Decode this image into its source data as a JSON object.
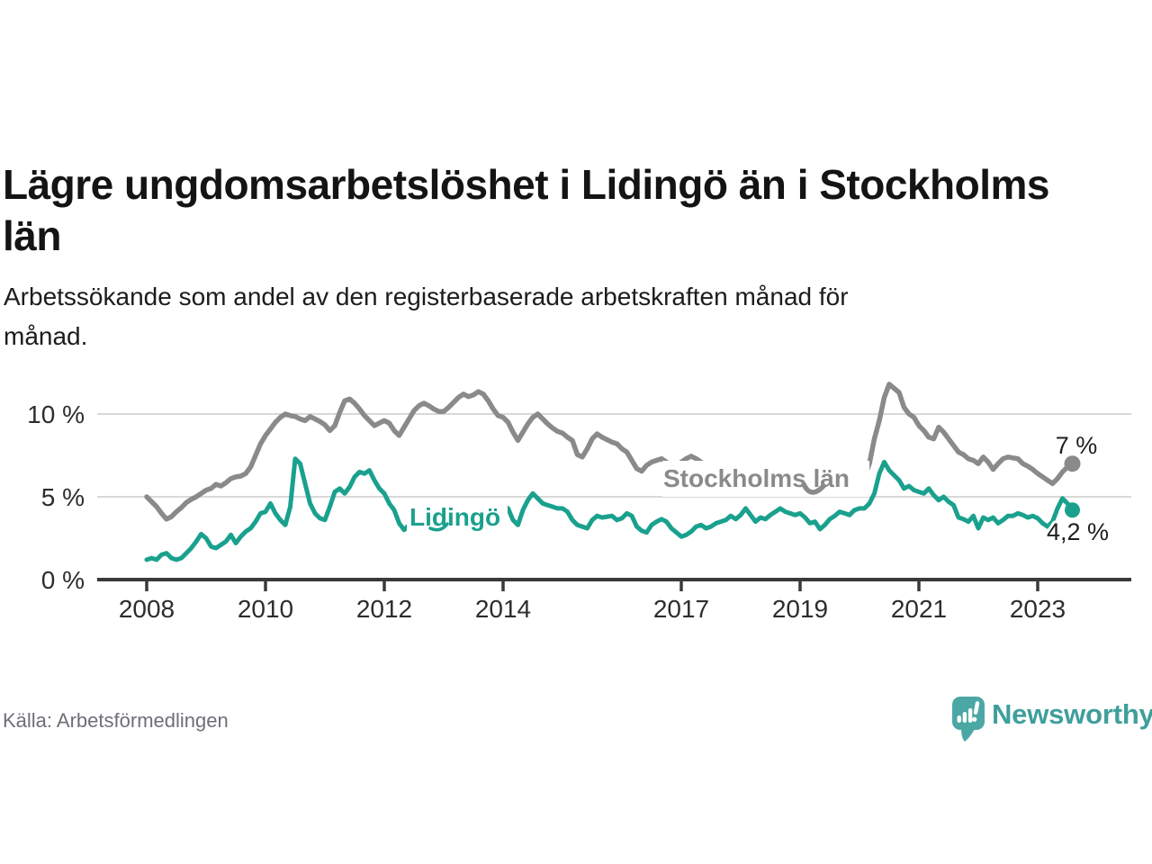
{
  "header": {
    "title": "Lägre ungdomsarbetslöshet i Lidingö än i Stockholms län",
    "title_lines": [
      "Lägre ungdomsarbetslöshet i Lidingö än i Stockholms",
      "län"
    ],
    "subtitle": "Arbetssökande som andel av den registerbaserade arbetskraften månad för månad.",
    "subtitle_lines": [
      "Arbetssökande som andel av den registerbaserade arbetskraften månad för",
      "månad."
    ]
  },
  "footer": {
    "source": "Källa: Arbetsförmedlingen",
    "brand": "Newsworthy"
  },
  "colors": {
    "accent_teal": "#1aa18e",
    "line_gray": "#8a8a8a",
    "logo_teal": "#4ba7a4",
    "wordmark_teal": "#3f9f9c",
    "axis_dark": "#3a3a3a",
    "grid_light": "#d8d8d8",
    "text_muted": "#6f6f78"
  },
  "chart_data": {
    "type": "line",
    "title": "Lägre ungdomsarbetslöshet i Lidingö än i Stockholms län",
    "xlabel": "",
    "ylabel": "Arbetssökande som andel av den registerbaserade arbetskraften",
    "frequency": "monthly",
    "x_start": "2008-01",
    "x_end": "2023-08",
    "ylim": [
      0,
      12.5
    ],
    "grid": "horizontal",
    "legend_position": "inline-labels",
    "yticks": [
      {
        "value": 0,
        "label": "0 %"
      },
      {
        "value": 5,
        "label": "5 %"
      },
      {
        "value": 10,
        "label": "10 %"
      }
    ],
    "xticks": [
      {
        "year": 2008,
        "label": "2008"
      },
      {
        "year": 2010,
        "label": "2010"
      },
      {
        "year": 2012,
        "label": "2012"
      },
      {
        "year": 2014,
        "label": "2014"
      },
      {
        "year": 2017,
        "label": "2017"
      },
      {
        "year": 2019,
        "label": "2019"
      },
      {
        "year": 2021,
        "label": "2021"
      },
      {
        "year": 2023,
        "label": "2023"
      }
    ],
    "series": [
      {
        "id": "stockholm",
        "name": "Stockholms län",
        "color": "#8a8a8a",
        "width": 5.5,
        "end_value": 7.0,
        "end_label": "7 %",
        "values": [
          5.0,
          4.7,
          4.4,
          4.0,
          3.65,
          3.8,
          4.1,
          4.35,
          4.65,
          4.85,
          5.0,
          5.2,
          5.4,
          5.5,
          5.75,
          5.65,
          5.85,
          6.1,
          6.2,
          6.25,
          6.4,
          6.8,
          7.5,
          8.2,
          8.7,
          9.1,
          9.5,
          9.8,
          10.0,
          9.9,
          9.85,
          9.7,
          9.6,
          9.85,
          9.7,
          9.55,
          9.35,
          9.0,
          9.3,
          10.1,
          10.8,
          10.9,
          10.65,
          10.3,
          9.9,
          9.6,
          9.3,
          9.45,
          9.6,
          9.45,
          9.0,
          8.7,
          9.2,
          9.7,
          10.2,
          10.5,
          10.65,
          10.5,
          10.3,
          10.15,
          10.15,
          10.4,
          10.7,
          11.0,
          11.2,
          11.05,
          11.15,
          11.35,
          11.2,
          10.8,
          10.3,
          9.9,
          9.8,
          9.5,
          8.9,
          8.4,
          8.9,
          9.4,
          9.8,
          10.0,
          9.7,
          9.4,
          9.15,
          8.95,
          8.85,
          8.6,
          8.4,
          7.55,
          7.4,
          7.9,
          8.5,
          8.8,
          8.6,
          8.45,
          8.3,
          8.2,
          7.9,
          7.7,
          7.2,
          6.7,
          6.55,
          6.9,
          7.1,
          7.2,
          7.3,
          7.1,
          6.7,
          6.5,
          7.1,
          7.3,
          7.45,
          7.3,
          7.1,
          6.9,
          6.7,
          6.5,
          6.35,
          6.2,
          6.1,
          6.0,
          5.9,
          5.8,
          5.75,
          5.65,
          5.6,
          5.5,
          5.45,
          5.4,
          5.35,
          5.3,
          5.3,
          5.25,
          5.2,
          5.15,
          5.2,
          5.25,
          5.2,
          5.3,
          5.3,
          5.35,
          5.4,
          5.35,
          5.4,
          5.5,
          5.6,
          6.2,
          7.0,
          8.5,
          9.6,
          11.0,
          11.8,
          11.55,
          11.3,
          10.4,
          10.0,
          9.8,
          9.3,
          9.0,
          8.6,
          8.5,
          9.2,
          8.9,
          8.5,
          8.1,
          7.7,
          7.55,
          7.3,
          7.2,
          7.0,
          7.4,
          7.1,
          6.65,
          7.0,
          7.3,
          7.4,
          7.35,
          7.3,
          7.0,
          6.85,
          6.65,
          6.4,
          6.2,
          6.0,
          5.8,
          6.1,
          6.5,
          6.8,
          7.0
        ]
      },
      {
        "id": "lidingo",
        "name": "Lidingö",
        "color": "#1aa18e",
        "width": 5,
        "end_value": 4.2,
        "end_label": "4,2 %",
        "values": [
          1.2,
          1.3,
          1.2,
          1.5,
          1.6,
          1.3,
          1.2,
          1.3,
          1.6,
          1.9,
          2.3,
          2.75,
          2.5,
          2.0,
          1.9,
          2.1,
          2.3,
          2.7,
          2.2,
          2.6,
          2.9,
          3.1,
          3.5,
          4.0,
          4.1,
          4.6,
          4.0,
          3.6,
          3.3,
          4.4,
          7.3,
          7.0,
          5.8,
          4.6,
          4.0,
          3.7,
          3.6,
          4.4,
          5.3,
          5.5,
          5.2,
          5.6,
          6.2,
          6.5,
          6.4,
          6.6,
          6.0,
          5.5,
          5.2,
          4.6,
          4.2,
          3.4,
          3.0,
          3.3,
          3.5,
          3.2,
          2.9,
          3.1,
          3.3,
          3.2,
          3.0,
          2.9,
          3.0,
          3.1,
          3.0,
          3.2,
          3.4,
          3.3,
          3.4,
          3.6,
          3.9,
          4.3,
          4.5,
          4.3,
          3.6,
          3.3,
          4.2,
          4.8,
          5.2,
          4.9,
          4.6,
          4.5,
          4.4,
          4.3,
          4.3,
          4.1,
          3.6,
          3.3,
          3.2,
          3.1,
          3.6,
          3.85,
          3.75,
          3.8,
          3.85,
          3.6,
          3.7,
          4.0,
          3.85,
          3.2,
          2.95,
          2.85,
          3.3,
          3.5,
          3.65,
          3.5,
          3.1,
          2.85,
          2.6,
          2.7,
          2.9,
          3.2,
          3.3,
          3.1,
          3.2,
          3.4,
          3.5,
          3.6,
          3.85,
          3.65,
          3.9,
          4.3,
          3.9,
          3.5,
          3.75,
          3.65,
          3.9,
          4.1,
          4.3,
          4.1,
          4.0,
          3.9,
          4.0,
          3.75,
          3.4,
          3.5,
          3.05,
          3.3,
          3.65,
          3.85,
          4.1,
          4.0,
          3.9,
          4.2,
          4.3,
          4.3,
          4.6,
          5.2,
          6.4,
          7.1,
          6.6,
          6.3,
          6.0,
          5.5,
          5.65,
          5.4,
          5.3,
          5.2,
          5.5,
          5.1,
          4.8,
          5.0,
          4.7,
          4.5,
          3.75,
          3.65,
          3.5,
          3.85,
          3.1,
          3.75,
          3.6,
          3.75,
          3.4,
          3.6,
          3.85,
          3.85,
          4.0,
          3.9,
          3.75,
          3.85,
          3.7,
          3.4,
          3.2,
          3.5,
          4.3,
          4.9,
          4.6,
          4.2
        ]
      }
    ]
  }
}
